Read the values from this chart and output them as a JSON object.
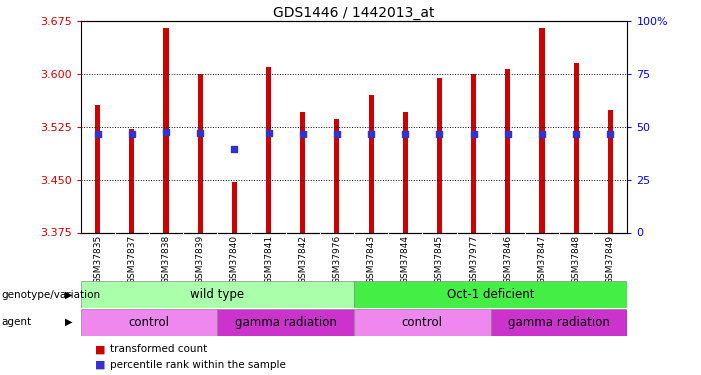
{
  "title": "GDS1446 / 1442013_at",
  "samples": [
    "GSM37835",
    "GSM37837",
    "GSM37838",
    "GSM37839",
    "GSM37840",
    "GSM37841",
    "GSM37842",
    "GSM37976",
    "GSM37843",
    "GSM37844",
    "GSM37845",
    "GSM37977",
    "GSM37846",
    "GSM37847",
    "GSM37848",
    "GSM37849"
  ],
  "bar_tops": [
    3.555,
    3.521,
    3.665,
    3.6,
    3.447,
    3.61,
    3.545,
    3.535,
    3.57,
    3.545,
    3.594,
    3.6,
    3.607,
    3.665,
    3.615,
    3.548
  ],
  "bar_base": 3.375,
  "blue_values": [
    3.515,
    3.514,
    3.517,
    3.516,
    3.493,
    3.516,
    3.515,
    3.514,
    3.515,
    3.515,
    3.515,
    3.515,
    3.515,
    3.515,
    3.515,
    3.514
  ],
  "ylim_left": [
    3.375,
    3.675
  ],
  "ylim_right": [
    0,
    100
  ],
  "yticks_left": [
    3.375,
    3.45,
    3.525,
    3.6,
    3.675
  ],
  "yticks_right": [
    0,
    25,
    50,
    75,
    100
  ],
  "ytick_labels_right": [
    "0",
    "25",
    "50",
    "75",
    "100%"
  ],
  "bar_color": "#cc0000",
  "blue_color": "#3333cc",
  "background_plot": "#ffffff",
  "background_fig": "#ffffff",
  "xtick_bg": "#d0d0d0",
  "genotype_groups": [
    {
      "label": "wild type",
      "start": 0,
      "end": 8,
      "color": "#aaffaa"
    },
    {
      "label": "Oct-1 deficient",
      "start": 8,
      "end": 16,
      "color": "#44ee44"
    }
  ],
  "agent_groups": [
    {
      "label": "control",
      "start": 0,
      "end": 4,
      "color": "#ee88ee"
    },
    {
      "label": "gamma radiation",
      "start": 4,
      "end": 8,
      "color": "#cc33cc"
    },
    {
      "label": "control",
      "start": 8,
      "end": 12,
      "color": "#ee88ee"
    },
    {
      "label": "gamma radiation",
      "start": 12,
      "end": 16,
      "color": "#cc33cc"
    }
  ],
  "legend_items": [
    {
      "label": "transformed count",
      "color": "#cc0000"
    },
    {
      "label": "percentile rank within the sample",
      "color": "#3333cc"
    }
  ],
  "label_genotype": "genotype/variation",
  "label_agent": "agent",
  "bar_width": 0.15
}
